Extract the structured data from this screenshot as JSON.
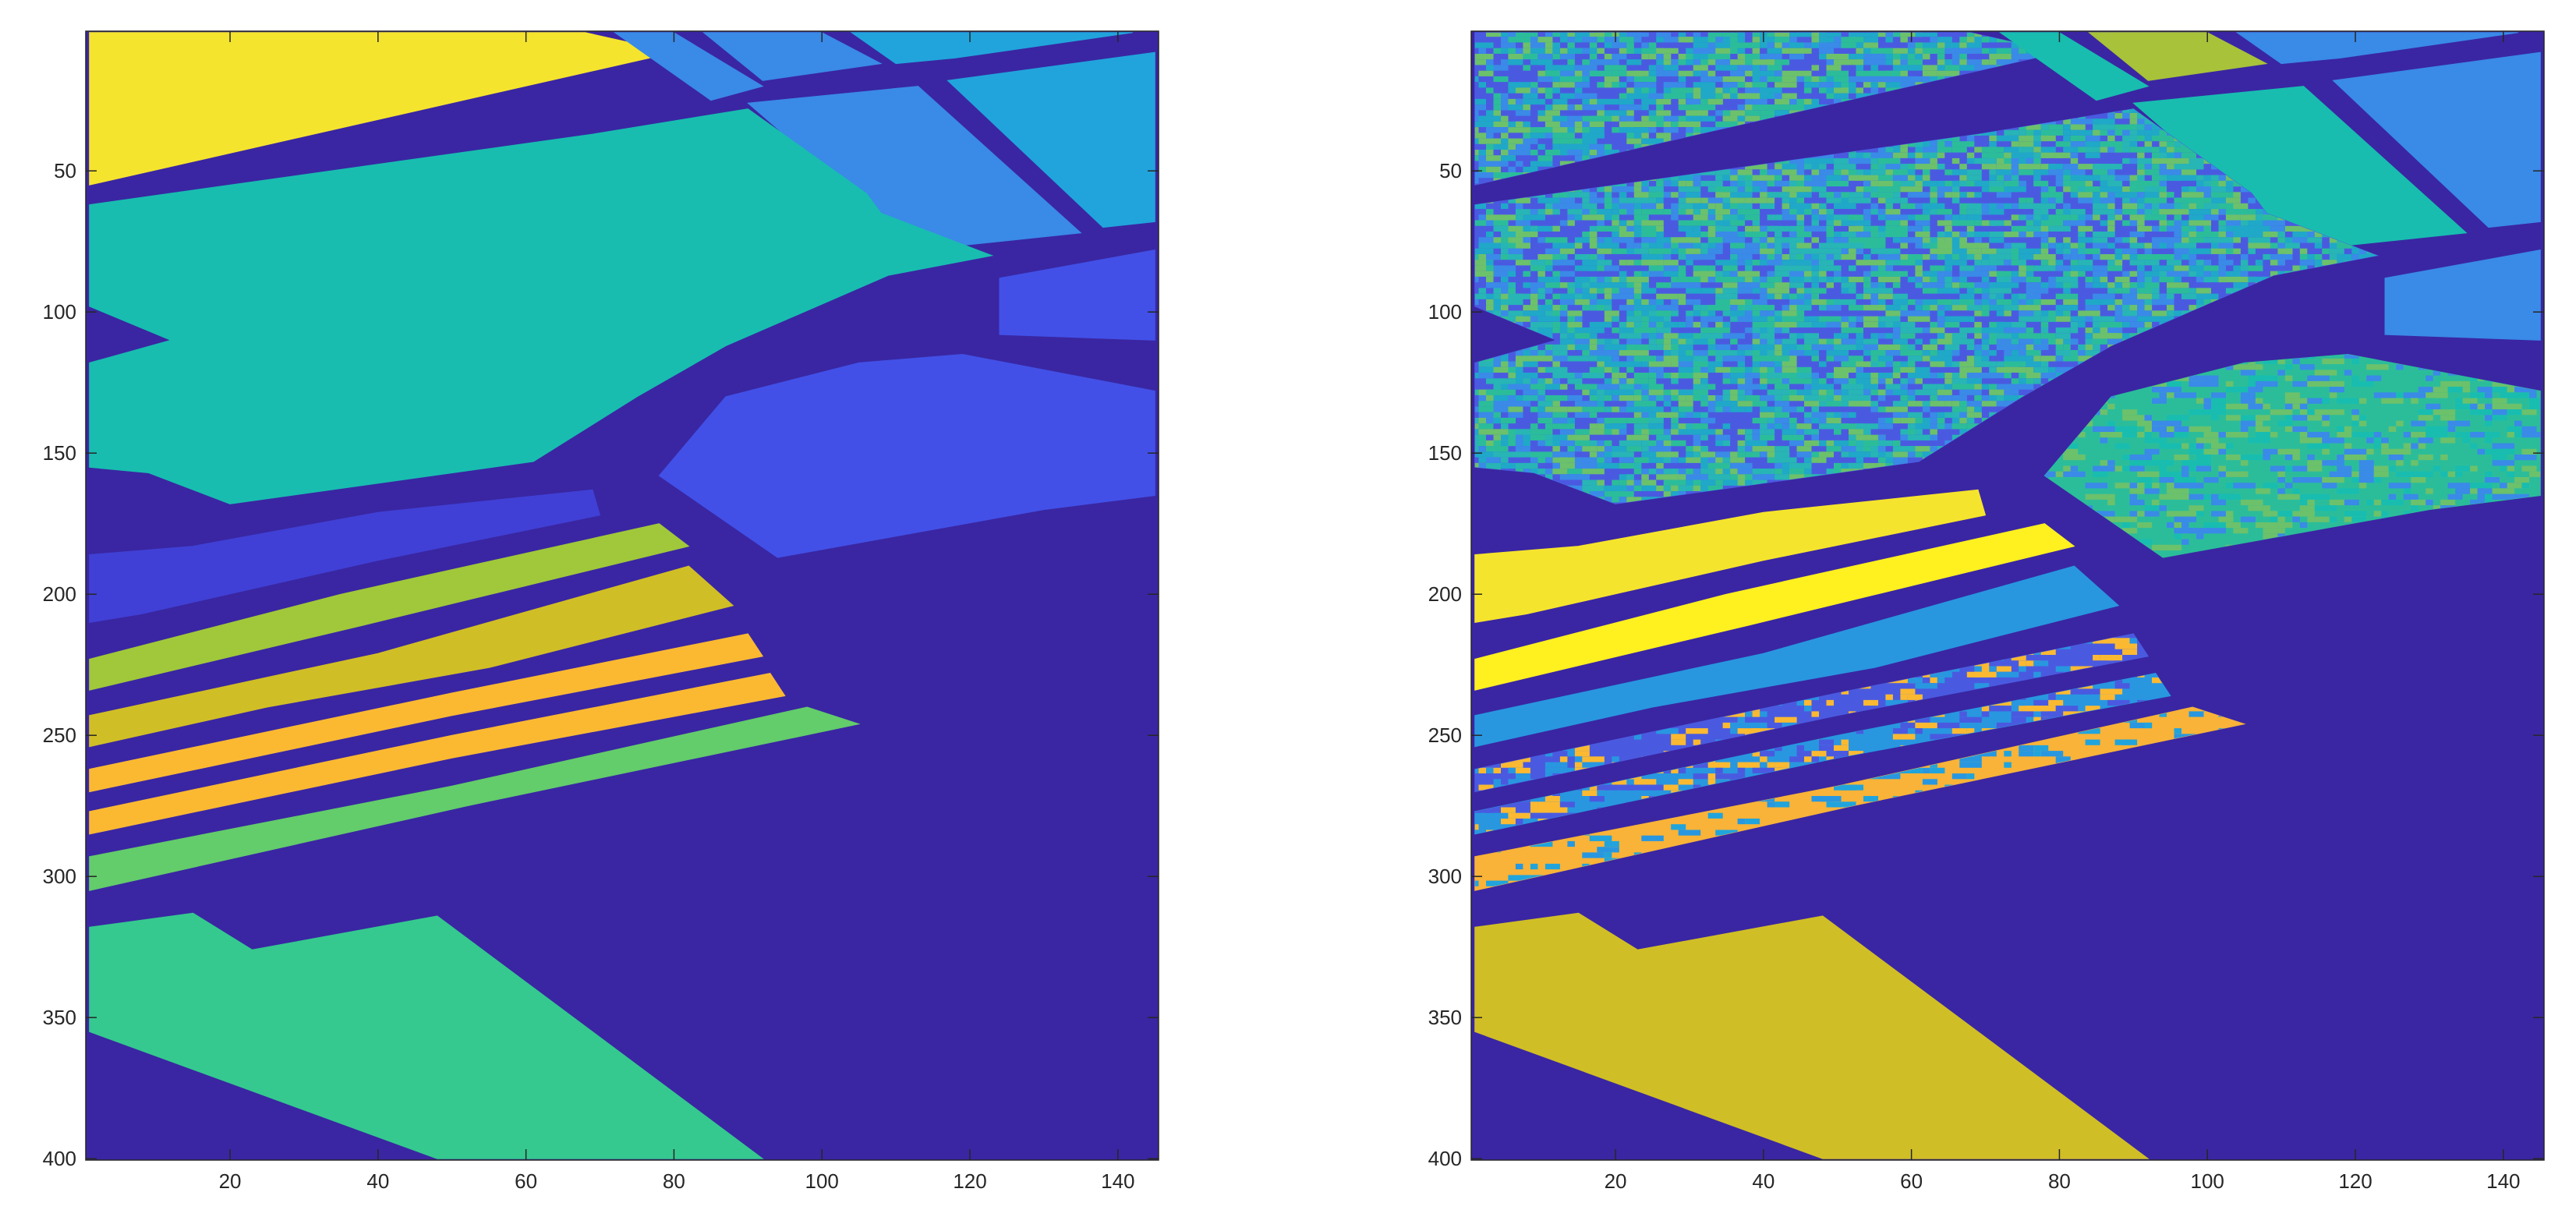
{
  "chart_data": [
    {
      "type": "heatmap",
      "title": "",
      "xlabel": "",
      "ylabel": "",
      "xlim": [
        0.5,
        145.5
      ],
      "ylim": [
        0.5,
        400.5
      ],
      "y_reversed": true,
      "x_ticks": [
        20,
        40,
        60,
        80,
        100,
        120,
        140
      ],
      "y_ticks": [
        50,
        100,
        150,
        200,
        250,
        300,
        350,
        400
      ],
      "background_color": "#3a26a2",
      "regions": [
        {
          "color": "#f5e42d",
          "points": [
            [
              1,
              1
            ],
            [
              68,
              1
            ],
            [
              80,
              8
            ],
            [
              1,
              55
            ]
          ]
        },
        {
          "color": "#3a8ae8",
          "points": [
            [
              72,
              1
            ],
            [
              80,
              1
            ],
            [
              92,
              20
            ],
            [
              85,
              25
            ]
          ]
        },
        {
          "color": "#3a8ae8",
          "points": [
            [
              84,
              1
            ],
            [
              100,
              1
            ],
            [
              108,
              12
            ],
            [
              92,
              18
            ]
          ]
        },
        {
          "color": "#21a4dc",
          "points": [
            [
              104,
              1
            ],
            [
              142,
              1
            ],
            [
              118,
              10
            ],
            [
              110,
              12
            ]
          ]
        },
        {
          "color": "#3a8ae8",
          "points": [
            [
              90,
              26
            ],
            [
              113,
              20
            ],
            [
              135,
              72
            ],
            [
              113,
              78
            ]
          ]
        },
        {
          "color": "#21a4dc",
          "points": [
            [
              117,
              18
            ],
            [
              145,
              8
            ],
            [
              145,
              68
            ],
            [
              138,
              70
            ]
          ]
        },
        {
          "color": "#18bdb0",
          "points": [
            [
              1,
              62
            ],
            [
              69,
              37
            ],
            [
              90,
              28
            ],
            [
              106,
              58
            ],
            [
              108,
              65
            ],
            [
              123,
              80
            ],
            [
              109,
              87
            ],
            [
              87,
              112
            ],
            [
              75,
              130
            ],
            [
              61,
              153
            ],
            [
              20,
              168
            ],
            [
              9,
              157
            ],
            [
              1,
              155
            ],
            [
              1,
              118
            ],
            [
              12,
              110
            ],
            [
              1,
              98
            ]
          ]
        },
        {
          "color": "#4250e7",
          "points": [
            [
              124,
              88
            ],
            [
              145,
              78
            ],
            [
              145,
              110
            ],
            [
              124,
              108
            ]
          ]
        },
        {
          "color": "#4250e7",
          "points": [
            [
              87,
              130
            ],
            [
              105,
              118
            ],
            [
              119,
              115
            ],
            [
              145,
              128
            ],
            [
              145,
              165
            ],
            [
              130,
              170
            ],
            [
              94,
              187
            ],
            [
              78,
              158
            ]
          ]
        },
        {
          "color": "#4040d6",
          "points": [
            [
              1,
              186
            ],
            [
              15,
              183
            ],
            [
              40,
              171
            ],
            [
              69,
              163
            ],
            [
              70,
              172
            ],
            [
              40,
              188
            ],
            [
              8,
              207
            ],
            [
              1,
              210
            ]
          ]
        },
        {
          "color": "#a0c83a",
          "points": [
            [
              1,
              223
            ],
            [
              35,
              200
            ],
            [
              78,
              175
            ],
            [
              82,
              183
            ],
            [
              38,
              211
            ],
            [
              1,
              234
            ]
          ]
        },
        {
          "color": "#d0be26",
          "points": [
            [
              1,
              243
            ],
            [
              40,
              221
            ],
            [
              82,
              190
            ],
            [
              88,
              204
            ],
            [
              55,
              226
            ],
            [
              25,
              240
            ],
            [
              1,
              254
            ]
          ]
        },
        {
          "color": "#fbb932",
          "points": [
            [
              1,
              262
            ],
            [
              50,
              235
            ],
            [
              90,
              214
            ],
            [
              92,
              222
            ],
            [
              50,
              243
            ],
            [
              1,
              270
            ]
          ]
        },
        {
          "color": "#fbb932",
          "points": [
            [
              1,
              277
            ],
            [
              50,
              250
            ],
            [
              93,
              228
            ],
            [
              95,
              236
            ],
            [
              50,
              258
            ],
            [
              1,
              285
            ]
          ]
        },
        {
          "color": "#63cc6b",
          "points": [
            [
              1,
              293
            ],
            [
              50,
              268
            ],
            [
              98,
              240
            ],
            [
              105,
              246
            ],
            [
              52,
              275
            ],
            [
              1,
              305
            ]
          ]
        },
        {
          "color": "#35c98f",
          "points": [
            [
              1,
              318
            ],
            [
              15,
              313
            ],
            [
              23,
              326
            ],
            [
              48,
              314
            ],
            [
              92,
              400
            ],
            [
              48,
              400
            ],
            [
              1,
              355
            ]
          ]
        }
      ]
    },
    {
      "type": "heatmap",
      "title": "",
      "xlabel": "",
      "ylabel": "",
      "xlim": [
        0.5,
        145.5
      ],
      "ylim": [
        0.5,
        400.5
      ],
      "y_reversed": true,
      "x_ticks": [
        20,
        40,
        60,
        80,
        100,
        120,
        140
      ],
      "y_ticks": [
        50,
        100,
        150,
        200,
        250,
        300,
        350,
        400
      ],
      "background_color": "#3a26a2",
      "regions": [
        {
          "color": "#4a5ae0",
          "points": [
            [
              1,
              1
            ],
            [
              68,
              1
            ],
            [
              80,
              8
            ],
            [
              1,
              55
            ]
          ],
          "noise": [
            "#1fa8c8",
            "#2bbd9a",
            "#3a8ae8",
            "#6cc16b"
          ],
          "noise_density": 0.55
        },
        {
          "color": "#18bdb0",
          "points": [
            [
              72,
              1
            ],
            [
              80,
              1
            ],
            [
              92,
              20
            ],
            [
              85,
              25
            ]
          ]
        },
        {
          "color": "#a8c239",
          "points": [
            [
              84,
              1
            ],
            [
              100,
              1
            ],
            [
              108,
              12
            ],
            [
              92,
              18
            ]
          ]
        },
        {
          "color": "#3a8ae8",
          "points": [
            [
              104,
              1
            ],
            [
              142,
              1
            ],
            [
              118,
              10
            ],
            [
              110,
              12
            ]
          ]
        },
        {
          "color": "#18bdb0",
          "points": [
            [
              90,
              26
            ],
            [
              113,
              20
            ],
            [
              135,
              72
            ],
            [
              113,
              78
            ]
          ]
        },
        {
          "color": "#3a8ae8",
          "points": [
            [
              117,
              18
            ],
            [
              145,
              8
            ],
            [
              145,
              68
            ],
            [
              138,
              70
            ]
          ]
        },
        {
          "color": "#4a5ae0",
          "points": [
            [
              1,
              62
            ],
            [
              69,
              37
            ],
            [
              90,
              28
            ],
            [
              106,
              58
            ],
            [
              108,
              65
            ],
            [
              123,
              80
            ],
            [
              109,
              87
            ],
            [
              87,
              112
            ],
            [
              75,
              130
            ],
            [
              61,
              153
            ],
            [
              20,
              168
            ],
            [
              9,
              157
            ],
            [
              1,
              155
            ],
            [
              1,
              118
            ],
            [
              12,
              110
            ],
            [
              1,
              98
            ]
          ],
          "noise": [
            "#1fa8c8",
            "#2bbd9a",
            "#3a8ae8",
            "#6cc16b",
            "#27b5b5"
          ],
          "noise_density": 0.55
        },
        {
          "color": "#3a8ae8",
          "points": [
            [
              124,
              88
            ],
            [
              145,
              78
            ],
            [
              145,
              110
            ],
            [
              124,
              108
            ]
          ]
        },
        {
          "color": "#2bbd9a",
          "points": [
            [
              87,
              130
            ],
            [
              105,
              118
            ],
            [
              119,
              115
            ],
            [
              145,
              128
            ],
            [
              145,
              165
            ],
            [
              130,
              170
            ],
            [
              94,
              187
            ],
            [
              78,
              158
            ]
          ],
          "noise": [
            "#6cc16b",
            "#18bdb0",
            "#3a8ae8"
          ],
          "noise_density": 0.3
        },
        {
          "color": "#f5e42d",
          "points": [
            [
              1,
              186
            ],
            [
              15,
              183
            ],
            [
              40,
              171
            ],
            [
              69,
              163
            ],
            [
              70,
              172
            ],
            [
              40,
              188
            ],
            [
              8,
              207
            ],
            [
              1,
              210
            ]
          ]
        },
        {
          "color": "#fff020",
          "points": [
            [
              1,
              223
            ],
            [
              35,
              200
            ],
            [
              78,
              175
            ],
            [
              82,
              183
            ],
            [
              38,
              211
            ],
            [
              1,
              234
            ]
          ]
        },
        {
          "color": "#2897e0",
          "points": [
            [
              1,
              243
            ],
            [
              40,
              221
            ],
            [
              82,
              190
            ],
            [
              88,
              204
            ],
            [
              55,
              226
            ],
            [
              25,
              240
            ],
            [
              1,
              254
            ]
          ]
        },
        {
          "color": "#4a5ae0",
          "points": [
            [
              1,
              262
            ],
            [
              50,
              235
            ],
            [
              90,
              214
            ],
            [
              92,
              222
            ],
            [
              50,
              243
            ],
            [
              1,
              270
            ]
          ],
          "noise": [
            "#fbb932",
            "#2897e0"
          ],
          "noise_density": 0.25
        },
        {
          "color": "#2897e0",
          "points": [
            [
              1,
              277
            ],
            [
              50,
              250
            ],
            [
              93,
              228
            ],
            [
              95,
              236
            ],
            [
              50,
              258
            ],
            [
              1,
              285
            ]
          ],
          "noise": [
            "#fbb932",
            "#4a5ae0"
          ],
          "noise_density": 0.3
        },
        {
          "color": "#f8b338",
          "points": [
            [
              1,
              293
            ],
            [
              50,
              268
            ],
            [
              98,
              240
            ],
            [
              105,
              246
            ],
            [
              52,
              275
            ],
            [
              1,
              305
            ]
          ],
          "noise": [
            "#2897e0",
            "#21a4dc"
          ],
          "noise_density": 0.12
        },
        {
          "color": "#d0be26",
          "points": [
            [
              1,
              318
            ],
            [
              15,
              313
            ],
            [
              23,
              326
            ],
            [
              48,
              314
            ],
            [
              92,
              400
            ],
            [
              48,
              400
            ],
            [
              1,
              355
            ]
          ]
        }
      ]
    }
  ]
}
